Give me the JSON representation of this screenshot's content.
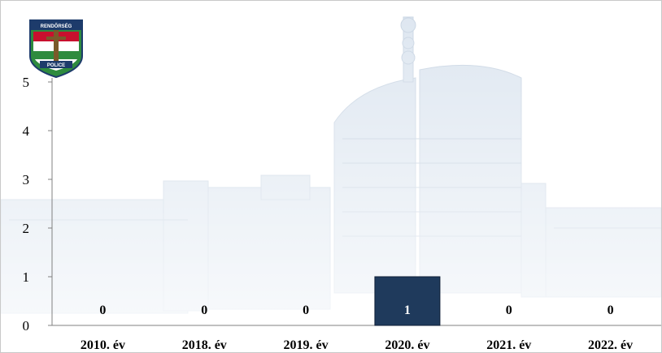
{
  "chart_data": {
    "type": "bar",
    "categories": [
      "2010. év",
      "2018. év",
      "2019. év",
      "2020. év",
      "2021. év",
      "2022. év"
    ],
    "values": [
      0,
      0,
      0,
      1,
      0,
      0
    ],
    "data_labels": [
      "0",
      "0",
      "0",
      "1",
      "0",
      "0"
    ],
    "title": "",
    "xlabel": "",
    "ylabel": "",
    "ylim": [
      0,
      5
    ],
    "yticks": [
      "0",
      "1",
      "2",
      "3",
      "4",
      "5"
    ],
    "grid": false,
    "legend": "none",
    "bar_color": "#1f3a5c",
    "label_color_on_bar": "#ffffff",
    "label_color_off_bar": "#000000"
  },
  "logo": {
    "icon": "police-shield-icon",
    "top_text": "RENDŐRSÉG",
    "bottom_text": "POLICE",
    "colors": [
      "#c8102e",
      "#ffffff",
      "#2e8b3e",
      "#1d3b6b"
    ]
  },
  "background": {
    "icon": "city-skyline-watermark",
    "tint": "#dce6f1"
  }
}
